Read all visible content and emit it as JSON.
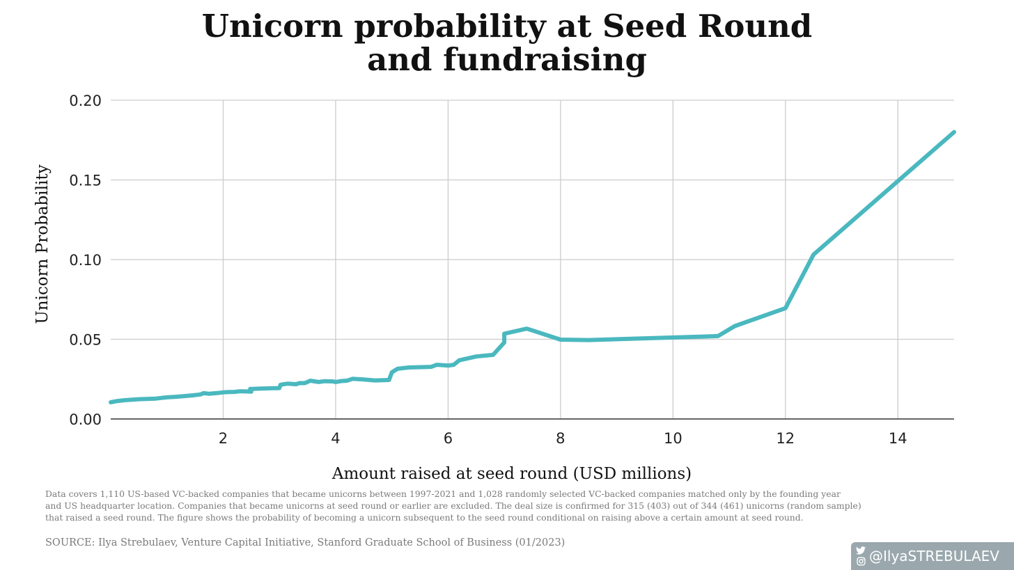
{
  "title_lines": [
    "Unicorn probability at Seed Round",
    "and fundraising"
  ],
  "chart_data": {
    "type": "line",
    "title": "Unicorn probability at Seed Round and fundraising",
    "xlabel": "Amount raised at seed round (USD millions)",
    "ylabel": "Unicorn Probability",
    "xlim": [
      0,
      15
    ],
    "ylim": [
      0,
      0.2
    ],
    "grid": true,
    "color": "#4ab8bf",
    "x_ticks": [
      2,
      4,
      6,
      8,
      10,
      12,
      14
    ],
    "x_tick_labels": [
      "2",
      "4",
      "6",
      "8",
      "10",
      "12",
      "14"
    ],
    "y_ticks": [
      0,
      0.05,
      0.1,
      0.15,
      0.2
    ],
    "y_tick_labels": [
      "0.00",
      "0.05",
      "0.10",
      "0.15",
      "0.20"
    ],
    "series": [
      {
        "name": "Unicorn Probability",
        "x": [
          0,
          0.1,
          0.25,
          0.5,
          0.8,
          1.0,
          1.2,
          1.45,
          1.6,
          1.65,
          1.75,
          1.8,
          1.9,
          2.0,
          2.1,
          2.2,
          2.3,
          2.4,
          2.5,
          2.48,
          2.55,
          2.6,
          2.7,
          2.8,
          2.9,
          3.0,
          3.02,
          3.15,
          3.3,
          3.35,
          3.45,
          3.55,
          3.7,
          3.8,
          3.95,
          4.0,
          4.1,
          4.2,
          4.3,
          4.5,
          4.7,
          4.9,
          4.95,
          5.0,
          5.1,
          5.3,
          5.7,
          5.8,
          6.0,
          6.1,
          6.2,
          6.5,
          6.8,
          7.0,
          7.0,
          7.4,
          8.0,
          8.5,
          10.8,
          11.1,
          12.0,
          12.5,
          15.0
        ],
        "y": [
          0.0105,
          0.0112,
          0.0118,
          0.0124,
          0.0128,
          0.0136,
          0.014,
          0.0148,
          0.0154,
          0.0162,
          0.0158,
          0.016,
          0.0163,
          0.0167,
          0.0169,
          0.017,
          0.0174,
          0.0173,
          0.0171,
          0.0188,
          0.0189,
          0.019,
          0.0191,
          0.0192,
          0.0193,
          0.0194,
          0.0215,
          0.0222,
          0.0218,
          0.0225,
          0.0225,
          0.024,
          0.0232,
          0.0237,
          0.0236,
          0.0232,
          0.0238,
          0.024,
          0.0252,
          0.0248,
          0.0242,
          0.0244,
          0.0245,
          0.0293,
          0.0315,
          0.0323,
          0.0327,
          0.034,
          0.0335,
          0.034,
          0.0368,
          0.0392,
          0.0402,
          0.048,
          0.0535,
          0.0567,
          0.0498,
          0.0495,
          0.052,
          0.0583,
          0.0695,
          0.1032,
          0.18
        ]
      }
    ]
  },
  "footnote_lines": [
    "Data covers 1,110 US-based VC-backed companies that became unicorns between 1997-2021 and 1,028 randomly selected VC-backed companies matched only by the founding year",
    "and US headquarter location. Companies that became unicorns at seed round or earlier are excluded. The deal size is confirmed for 315 (403) out of 344 (461) unicorns (random sample)",
    "that raised a seed round. The figure shows the probability of becoming a unicorn subsequent to the seed round conditional on raising above a certain amount at seed round."
  ],
  "source": "SOURCE: Ilya Strebulaev, Venture Capital Initiative, Stanford Graduate School of Business (01/2023)",
  "social": {
    "handle": "@IlyaSTREBULAEV",
    "icons": [
      "twitter-icon",
      "instagram-icon"
    ],
    "bg_color": "#9aa8ae"
  }
}
